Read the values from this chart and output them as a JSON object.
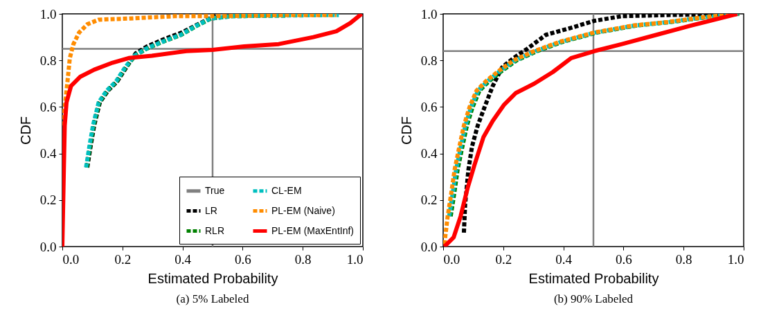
{
  "chart_data": [
    {
      "type": "line",
      "title": "(a) 5% Labeled",
      "xlabel": "Estimated Probability",
      "ylabel": "CDF",
      "xlim": [
        0,
        1
      ],
      "ylim": [
        0,
        1
      ],
      "xticks": [
        {
          "value": 0,
          "label": "0.0"
        },
        {
          "value": 0.2,
          "label": "0.2"
        },
        {
          "value": 0.4,
          "label": "0.4"
        },
        {
          "value": 0.6,
          "label": "0.6"
        },
        {
          "value": 0.8,
          "label": "0.8"
        },
        {
          "value": 1,
          "label": "1.0"
        }
      ],
      "yticks": [
        {
          "value": 0,
          "label": "0.0"
        },
        {
          "value": 0.2,
          "label": "0.2"
        },
        {
          "value": 0.4,
          "label": "0.4"
        },
        {
          "value": 0.6,
          "label": "0.6"
        },
        {
          "value": 0.8,
          "label": "0.8"
        },
        {
          "value": 1,
          "label": "1.0"
        }
      ],
      "legend": "bottom right",
      "ref_lines": [
        {
          "axis": "x",
          "value": 0.5,
          "label": "True",
          "color": "#808080",
          "line_style": "solid"
        },
        {
          "axis": "y",
          "value": 0.85,
          "color": "#808080",
          "line_style": "solid"
        }
      ],
      "series": [
        {
          "name": "LR",
          "color": "#000000",
          "line_style": "dotted",
          "x": [
            0.083,
            0.094,
            0.106,
            0.125,
            0.152,
            0.183,
            0.213,
            0.244,
            0.282,
            0.336,
            0.398,
            0.451,
            0.497,
            0.513
          ],
          "values": [
            0.34,
            0.43,
            0.52,
            0.62,
            0.67,
            0.71,
            0.77,
            0.83,
            0.86,
            0.89,
            0.92,
            0.955,
            0.985,
            1.0
          ]
        },
        {
          "name": "RLR",
          "color": "#008000",
          "line_style": "dotted",
          "x": [
            0.081,
            0.092,
            0.104,
            0.123,
            0.15,
            0.181,
            0.211,
            0.242,
            0.28,
            0.334,
            0.396,
            0.449,
            0.495,
            0.566,
            0.75
          ],
          "values": [
            0.34,
            0.43,
            0.52,
            0.62,
            0.67,
            0.71,
            0.77,
            0.82,
            0.85,
            0.88,
            0.91,
            0.95,
            0.98,
            0.99,
            0.993
          ]
        },
        {
          "name": "CL-EM",
          "color": "#00bfbf",
          "line_style": "dotted",
          "x": [
            0.079,
            0.09,
            0.102,
            0.121,
            0.148,
            0.179,
            0.209,
            0.24,
            0.278,
            0.332,
            0.394,
            0.447,
            0.493,
            0.566,
            0.75,
            0.92
          ],
          "values": [
            0.34,
            0.43,
            0.52,
            0.62,
            0.67,
            0.71,
            0.77,
            0.82,
            0.85,
            0.88,
            0.91,
            0.95,
            0.98,
            0.99,
            0.993,
            0.995
          ]
        },
        {
          "name": "PL-EM (Naive)",
          "color": "#ff8c00",
          "line_style": "dotted",
          "x": [
            0.002,
            0.01,
            0.018,
            0.025,
            0.037,
            0.056,
            0.083,
            0.121,
            0.221,
            0.375,
            0.528,
            0.758,
            0.912
          ],
          "values": [
            0.52,
            0.62,
            0.72,
            0.81,
            0.87,
            0.92,
            0.955,
            0.975,
            0.98,
            0.99,
            0.99,
            0.995,
            0.995
          ]
        },
        {
          "name": "PL-EM (MaxEntInf)",
          "color": "#ff0000",
          "line_style": "solid",
          "x": [
            0.0,
            0.005,
            0.008,
            0.014,
            0.029,
            0.06,
            0.106,
            0.167,
            0.221,
            0.298,
            0.413,
            0.5,
            0.605,
            0.72,
            0.835,
            0.912,
            0.958,
            0.996
          ],
          "values": [
            0.0,
            0.33,
            0.52,
            0.62,
            0.69,
            0.73,
            0.76,
            0.79,
            0.81,
            0.82,
            0.84,
            0.845,
            0.86,
            0.87,
            0.9,
            0.925,
            0.96,
            1.0
          ]
        }
      ]
    },
    {
      "type": "line",
      "title": "(b) 90% Labeled",
      "xlabel": "Estimated Probability",
      "ylabel": "CDF",
      "xlim": [
        0,
        1
      ],
      "ylim": [
        0,
        1
      ],
      "xticks": [
        {
          "value": 0,
          "label": "0.0"
        },
        {
          "value": 0.2,
          "label": "0.2"
        },
        {
          "value": 0.4,
          "label": "0.4"
        },
        {
          "value": 0.6,
          "label": "0.6"
        },
        {
          "value": 0.8,
          "label": "0.8"
        },
        {
          "value": 1,
          "label": "1.0"
        }
      ],
      "yticks": [
        {
          "value": 0,
          "label": "0.0"
        },
        {
          "value": 0.2,
          "label": "0.2"
        },
        {
          "value": 0.4,
          "label": "0.4"
        },
        {
          "value": 0.6,
          "label": "0.6"
        },
        {
          "value": 0.8,
          "label": "0.8"
        },
        {
          "value": 1,
          "label": "1.0"
        }
      ],
      "ref_lines": [
        {
          "axis": "x",
          "value": 0.5,
          "color": "#808080",
          "line_style": "solid"
        },
        {
          "axis": "y",
          "value": 0.84,
          "color": "#808080",
          "line_style": "solid"
        }
      ],
      "series": [
        {
          "color": "#000000",
          "line_style": "dotted",
          "x": [
            0.069,
            0.073,
            0.084,
            0.096,
            0.115,
            0.138,
            0.165,
            0.196,
            0.234,
            0.28,
            0.342,
            0.426,
            0.503,
            0.595,
            0.748,
            0.979
          ],
          "values": [
            0.06,
            0.18,
            0.33,
            0.43,
            0.52,
            0.6,
            0.69,
            0.77,
            0.81,
            0.85,
            0.91,
            0.94,
            0.97,
            0.99,
            0.995,
            1.0
          ]
        },
        {
          "color": "#008000",
          "line_style": "dotted",
          "x": [
            0.025,
            0.037,
            0.048,
            0.064,
            0.079,
            0.098,
            0.121,
            0.152,
            0.19,
            0.244,
            0.313,
            0.398,
            0.513,
            0.643,
            0.758,
            0.873,
            0.985
          ],
          "values": [
            0.13,
            0.23,
            0.33,
            0.43,
            0.52,
            0.6,
            0.67,
            0.71,
            0.75,
            0.8,
            0.84,
            0.88,
            0.92,
            0.95,
            0.965,
            0.985,
            1.0
          ]
        },
        {
          "color": "#00bfbf",
          "line_style": "dotted",
          "x": [
            0.02,
            0.032,
            0.043,
            0.059,
            0.074,
            0.093,
            0.116,
            0.147,
            0.185,
            0.239,
            0.308,
            0.393,
            0.508,
            0.638,
            0.753,
            0.868,
            0.982
          ],
          "values": [
            0.13,
            0.23,
            0.33,
            0.43,
            0.52,
            0.6,
            0.67,
            0.71,
            0.75,
            0.8,
            0.84,
            0.88,
            0.92,
            0.95,
            0.965,
            0.985,
            1.0
          ]
        },
        {
          "color": "#ff8c00",
          "line_style": "dotted",
          "x": [
            0.004,
            0.015,
            0.027,
            0.038,
            0.054,
            0.069,
            0.088,
            0.111,
            0.142,
            0.18,
            0.234,
            0.303,
            0.388,
            0.503,
            0.633,
            0.748,
            0.863,
            0.979
          ],
          "values": [
            0.01,
            0.13,
            0.23,
            0.33,
            0.43,
            0.52,
            0.6,
            0.67,
            0.71,
            0.75,
            0.8,
            0.84,
            0.88,
            0.92,
            0.95,
            0.965,
            0.985,
            1.0
          ]
        },
        {
          "color": "#ff0000",
          "line_style": "solid",
          "x": [
            0.004,
            0.035,
            0.058,
            0.081,
            0.104,
            0.134,
            0.165,
            0.203,
            0.242,
            0.303,
            0.365,
            0.426,
            0.503,
            0.595,
            0.71,
            0.825,
            0.979
          ],
          "values": [
            0.0,
            0.04,
            0.13,
            0.25,
            0.35,
            0.47,
            0.54,
            0.61,
            0.66,
            0.7,
            0.75,
            0.81,
            0.84,
            0.87,
            0.91,
            0.95,
            1.0
          ]
        }
      ]
    }
  ]
}
